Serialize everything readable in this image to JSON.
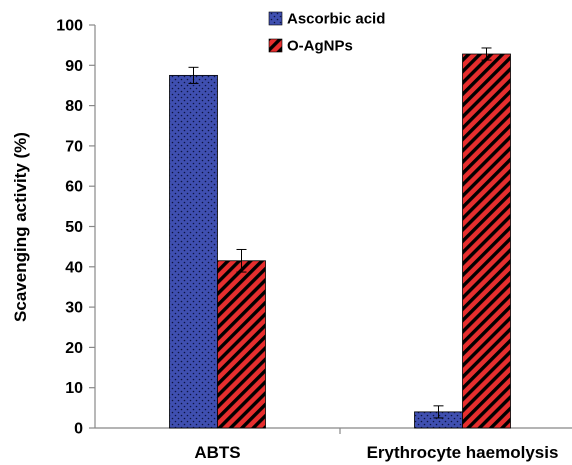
{
  "chart_data": {
    "type": "bar",
    "categories": [
      "ABTS",
      "Erythrocyte haemolysis"
    ],
    "series": [
      {
        "name": "Ascorbic acid",
        "values": [
          87.5,
          4.0
        ],
        "errors": [
          2.0,
          1.5
        ],
        "color": "#3f4fb0",
        "pattern": "dots"
      },
      {
        "name": "O-AgNPs",
        "values": [
          41.5,
          92.8
        ],
        "errors": [
          2.8,
          1.5
        ],
        "color": "#e62e2e",
        "pattern": "diagonal-stripes"
      }
    ],
    "title": "",
    "xlabel": "",
    "ylabel": "Scavenging activity (%)",
    "ylim": [
      0,
      100
    ],
    "yticks": [
      0,
      10,
      20,
      30,
      40,
      50,
      60,
      70,
      80,
      90,
      100
    ],
    "grid": false,
    "legend": "top-center"
  }
}
